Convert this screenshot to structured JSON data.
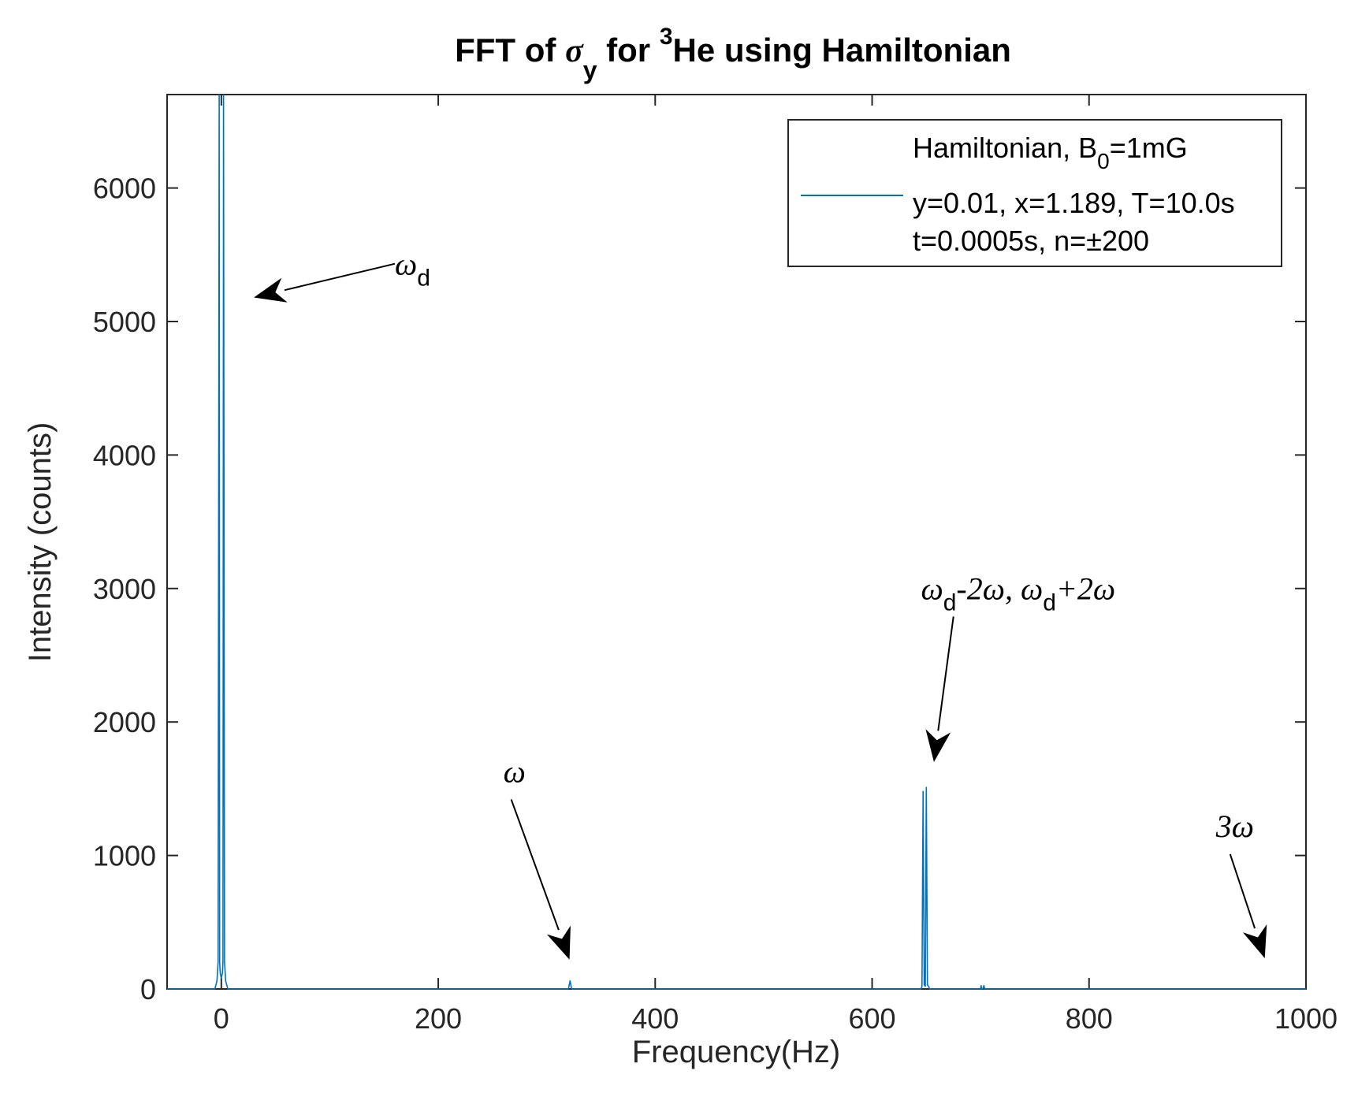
{
  "colors": {
    "series": "#0072BD",
    "axis": "#262626",
    "background": "#ffffff"
  },
  "chart_data": {
    "type": "line",
    "title_parts": {
      "prefix": "FFT of ",
      "sigma": "σ",
      "sigma_sub": "y",
      "mid": " for ",
      "sup": "3",
      "suffix": "He using Hamiltonian"
    },
    "xlabel": "Frequency(Hz)",
    "ylabel": "Intensity (counts)",
    "xlim": [
      -50,
      1000
    ],
    "ylim": [
      0,
      6700
    ],
    "xticks": [
      0,
      200,
      400,
      600,
      800,
      1000
    ],
    "yticks": [
      0,
      1000,
      2000,
      3000,
      4000,
      5000,
      6000
    ],
    "grid": false,
    "legend": {
      "placement": "top-right",
      "line1_prefix": "Hamiltonian, B",
      "line1_sub": "0",
      "line1_suffix": "=1mG",
      "line2": "y=0.01, x=1.189, T=10.0s",
      "line3": "t=0.0005s, n=±200"
    },
    "series": [
      {
        "x": [
          -50,
          -6,
          -4,
          -3,
          -2,
          -1.5,
          -1,
          0,
          1,
          1.5,
          2,
          3,
          4,
          6,
          10,
          320,
          321,
          321.5,
          322,
          323,
          645,
          646,
          647,
          648,
          649,
          650,
          651,
          652,
          653,
          700,
          700.5,
          701,
          702,
          703,
          704,
          705,
          1000
        ],
        "y": [
          0,
          0,
          60,
          200,
          6700,
          200,
          120,
          80,
          120,
          200,
          6700,
          200,
          60,
          0,
          0,
          0,
          40,
          60,
          40,
          0,
          0,
          20,
          1480,
          30,
          20,
          1510,
          30,
          20,
          0,
          0,
          25,
          0,
          0,
          25,
          0,
          0,
          0
        ]
      }
    ],
    "annotations": [
      {
        "id": "omega-d",
        "text": "ω",
        "sub": "d",
        "text_x": 160,
        "text_y": 5350,
        "arrow_x": 30,
        "arrow_y": 5180
      },
      {
        "id": "omega",
        "text": "ω",
        "sub": "",
        "text_x": 260,
        "text_y": 1550,
        "arrow_x": 321,
        "arrow_y": 220
      },
      {
        "id": "omega-d-2omega",
        "text": "ω",
        "sub": "d",
        "rest": "-2ω, ω",
        "sub2": "d",
        "rest2": "+2ω",
        "text_x": 645,
        "text_y": 2920,
        "arrow_x": 657,
        "arrow_y": 1700
      },
      {
        "id": "three-omega",
        "text": "3ω",
        "sub": "",
        "text_x": 917,
        "text_y": 1140,
        "arrow_x": 962,
        "arrow_y": 230
      }
    ]
  }
}
